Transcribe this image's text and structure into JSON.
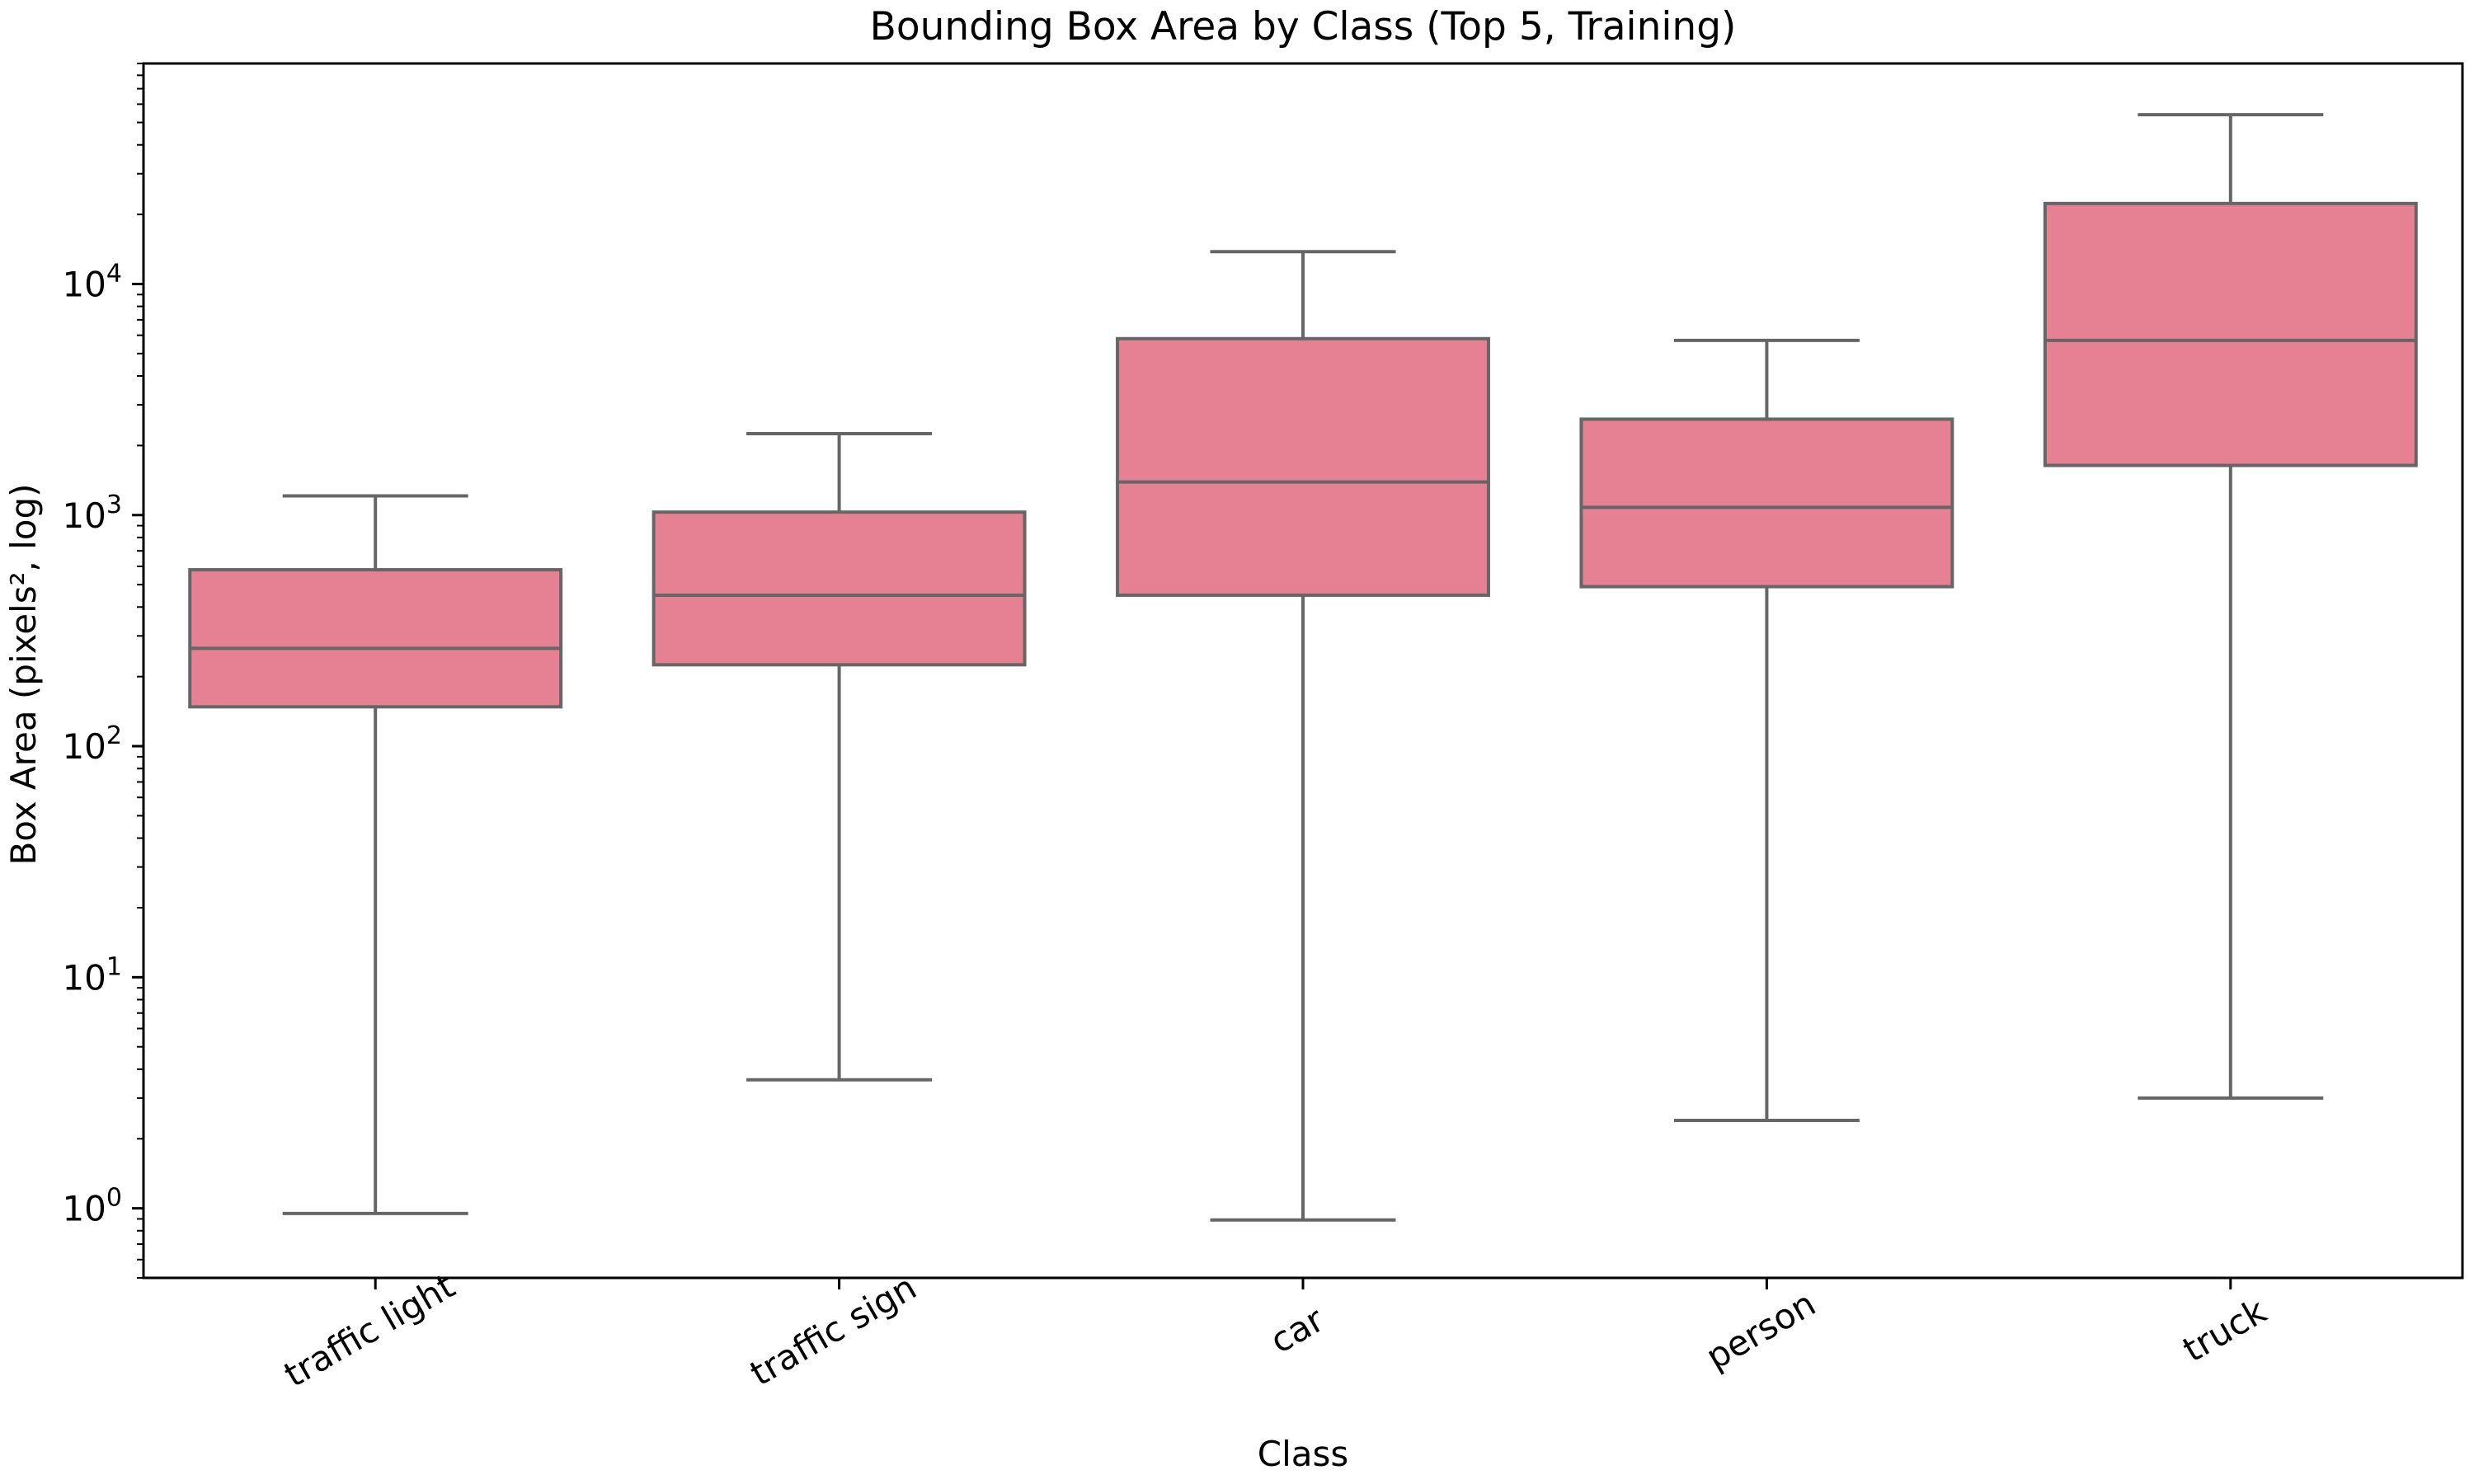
{
  "chart_data": {
    "type": "box",
    "title": "Bounding Box Area by Class (Top 5, Training)",
    "xlabel": "Class",
    "ylabel": "Box Area (pixels², log)",
    "yscale": "log",
    "ylim": [
      0.5,
      90000
    ],
    "yticks": [
      1,
      10,
      100,
      1000,
      10000
    ],
    "ytick_labels": [
      {
        "base": "10",
        "exp": "0"
      },
      {
        "base": "10",
        "exp": "1"
      },
      {
        "base": "10",
        "exp": "2"
      },
      {
        "base": "10",
        "exp": "3"
      },
      {
        "base": "10",
        "exp": "4"
      }
    ],
    "categories": [
      "traffic light",
      "traffic sign",
      "car",
      "person",
      "truck"
    ],
    "boxes": [
      {
        "category": "traffic light",
        "whisker_low": 0.95,
        "q1": 148,
        "median": 265,
        "q3": 580,
        "whisker_high": 1210
      },
      {
        "category": "traffic sign",
        "whisker_low": 3.6,
        "q1": 225,
        "median": 450,
        "q3": 1030,
        "whisker_high": 2250
      },
      {
        "category": "car",
        "whisker_low": 0.89,
        "q1": 450,
        "median": 1390,
        "q3": 5800,
        "whisker_high": 13800
      },
      {
        "category": "person",
        "whisker_low": 2.4,
        "q1": 490,
        "median": 1080,
        "q3": 2600,
        "whisker_high": 5700
      },
      {
        "category": "truck",
        "whisker_low": 3.0,
        "q1": 1640,
        "median": 5700,
        "q3": 22300,
        "whisker_high": 54000
      }
    ],
    "box_color": "#e68193",
    "line_color": "#666666",
    "grid": false,
    "legend": "none"
  }
}
